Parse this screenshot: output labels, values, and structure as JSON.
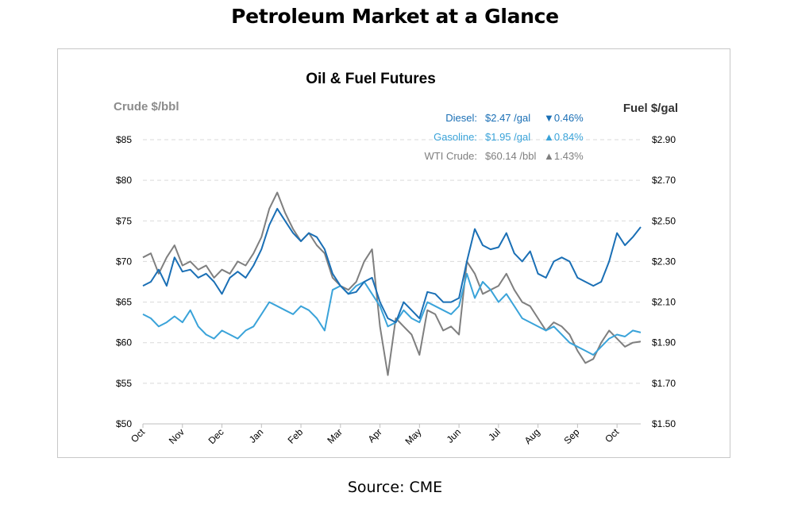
{
  "page": {
    "title": "Petroleum Market at a Glance",
    "source": "Source: CME"
  },
  "colors": {
    "diesel": "#1a6fb5",
    "gasoline": "#3aa3d9",
    "crude": "#7f7f7f",
    "grid": "#d9d9d9"
  },
  "chart_data": {
    "type": "line",
    "title": "Oil & Fuel Futures",
    "ylabel_left": "Crude $/bbl",
    "ylabel_right": "Fuel $/gal",
    "ylim_left": [
      50,
      85
    ],
    "ylim_right": [
      1.5,
      2.9
    ],
    "yticks_left": [
      "$85",
      "$80",
      "$75",
      "$70",
      "$65",
      "$60",
      "$55",
      "$50"
    ],
    "yticks_right": [
      "$2.90",
      "$2.70",
      "$2.50",
      "$2.30",
      "$2.10",
      "$1.90",
      "$1.70",
      "$1.50"
    ],
    "x_months": [
      "Oct",
      "Nov",
      "Dec",
      "Jan",
      "Feb",
      "Mar",
      "Apr",
      "May",
      "Jun",
      "Jul",
      "Aug",
      "Sep",
      "Oct"
    ],
    "grid": "horizontal dashed",
    "legend_placement": "top-right",
    "legend": [
      {
        "label": "Diesel:",
        "value": "$2.47 /gal",
        "change": "▼0.46%"
      },
      {
        "label": "Gasoline:",
        "value": "$1.95 /gal",
        "change": "▲0.84%"
      },
      {
        "label": "WTI Crude:",
        "value": "$60.14 /bbl",
        "change": "▲1.43%"
      }
    ],
    "series": [
      {
        "key": "diesel",
        "axis": "right",
        "x": [
          0,
          0.2,
          0.4,
          0.6,
          0.8,
          1,
          1.2,
          1.4,
          1.6,
          1.8,
          2,
          2.2,
          2.4,
          2.6,
          2.8,
          3,
          3.2,
          3.4,
          3.6,
          3.8,
          4,
          4.2,
          4.4,
          4.6,
          4.8,
          5,
          5.2,
          5.4,
          5.6,
          5.8,
          6,
          6.2,
          6.4,
          6.6,
          6.8,
          7,
          7.2,
          7.4,
          7.6,
          7.8,
          8,
          8.2,
          8.4,
          8.6,
          8.8,
          9,
          9.2,
          9.4,
          9.6,
          9.8,
          10,
          10.2,
          10.4,
          10.6,
          10.8,
          11,
          11.2,
          11.4,
          11.6,
          11.8,
          12,
          12.2,
          12.4,
          12.6
        ],
        "values": [
          2.18,
          2.2,
          2.26,
          2.18,
          2.32,
          2.25,
          2.26,
          2.22,
          2.24,
          2.2,
          2.14,
          2.22,
          2.25,
          2.22,
          2.28,
          2.36,
          2.48,
          2.56,
          2.5,
          2.44,
          2.4,
          2.44,
          2.42,
          2.36,
          2.24,
          2.18,
          2.14,
          2.15,
          2.2,
          2.22,
          2.1,
          2.02,
          2.0,
          2.1,
          2.06,
          2.02,
          2.15,
          2.14,
          2.1,
          2.1,
          2.12,
          2.3,
          2.46,
          2.38,
          2.36,
          2.37,
          2.44,
          2.34,
          2.3,
          2.35,
          2.24,
          2.22,
          2.3,
          2.32,
          2.3,
          2.22,
          2.2,
          2.18,
          2.2,
          2.3,
          2.44,
          2.38,
          2.42,
          2.47
        ]
      },
      {
        "key": "gasoline",
        "axis": "right",
        "x": [
          0,
          0.2,
          0.4,
          0.6,
          0.8,
          1,
          1.2,
          1.4,
          1.6,
          1.8,
          2,
          2.2,
          2.4,
          2.6,
          2.8,
          3,
          3.2,
          3.4,
          3.6,
          3.8,
          4,
          4.2,
          4.4,
          4.6,
          4.8,
          5,
          5.2,
          5.4,
          5.6,
          5.8,
          6,
          6.2,
          6.4,
          6.6,
          6.8,
          7,
          7.2,
          7.4,
          7.6,
          7.8,
          8,
          8.2,
          8.4,
          8.6,
          8.8,
          9,
          9.2,
          9.4,
          9.6,
          9.8,
          10,
          10.2,
          10.4,
          10.6,
          10.8,
          11,
          11.2,
          11.4,
          11.6,
          11.8,
          12,
          12.2,
          12.4,
          12.6
        ],
        "values": [
          2.04,
          2.02,
          1.98,
          2.0,
          2.03,
          2.0,
          2.06,
          1.98,
          1.94,
          1.92,
          1.96,
          1.94,
          1.92,
          1.96,
          1.98,
          2.04,
          2.1,
          2.08,
          2.06,
          2.04,
          2.08,
          2.06,
          2.02,
          1.96,
          2.16,
          2.18,
          2.14,
          2.18,
          2.2,
          2.14,
          2.08,
          1.98,
          2.0,
          2.06,
          2.02,
          2.0,
          2.1,
          2.08,
          2.06,
          2.04,
          2.08,
          2.24,
          2.12,
          2.2,
          2.16,
          2.1,
          2.14,
          2.08,
          2.02,
          2.0,
          1.98,
          1.96,
          1.98,
          1.94,
          1.9,
          1.88,
          1.86,
          1.84,
          1.88,
          1.92,
          1.94,
          1.93,
          1.96,
          1.95
        ]
      },
      {
        "key": "crude",
        "axis": "left",
        "x": [
          0,
          0.2,
          0.4,
          0.6,
          0.8,
          1,
          1.2,
          1.4,
          1.6,
          1.8,
          2,
          2.2,
          2.4,
          2.6,
          2.8,
          3,
          3.2,
          3.4,
          3.6,
          3.8,
          4,
          4.2,
          4.4,
          4.6,
          4.8,
          5,
          5.2,
          5.4,
          5.6,
          5.8,
          6,
          6.2,
          6.4,
          6.6,
          6.8,
          7,
          7.2,
          7.4,
          7.6,
          7.8,
          8,
          8.2,
          8.4,
          8.6,
          8.8,
          9,
          9.2,
          9.4,
          9.6,
          9.8,
          10,
          10.2,
          10.4,
          10.6,
          10.8,
          11,
          11.2,
          11.4,
          11.6,
          11.8,
          12,
          12.2,
          12.4,
          12.6
        ],
        "values": [
          70.5,
          71,
          68.5,
          70.5,
          72,
          69.5,
          70,
          69,
          69.5,
          68,
          69,
          68.5,
          70,
          69.5,
          71,
          73,
          76.5,
          78.5,
          76,
          74,
          72.5,
          73.5,
          72,
          71,
          68,
          67,
          66.5,
          67.5,
          70,
          71.5,
          62,
          56,
          63,
          62,
          61,
          58.5,
          64,
          63.5,
          61.5,
          62,
          61,
          70,
          68.5,
          66,
          66.5,
          67,
          68.5,
          66.5,
          65,
          64.5,
          63,
          61.5,
          62.5,
          62,
          61,
          59,
          57.5,
          58,
          60,
          61.5,
          60.5,
          59.5,
          60,
          60.14
        ]
      }
    ]
  }
}
